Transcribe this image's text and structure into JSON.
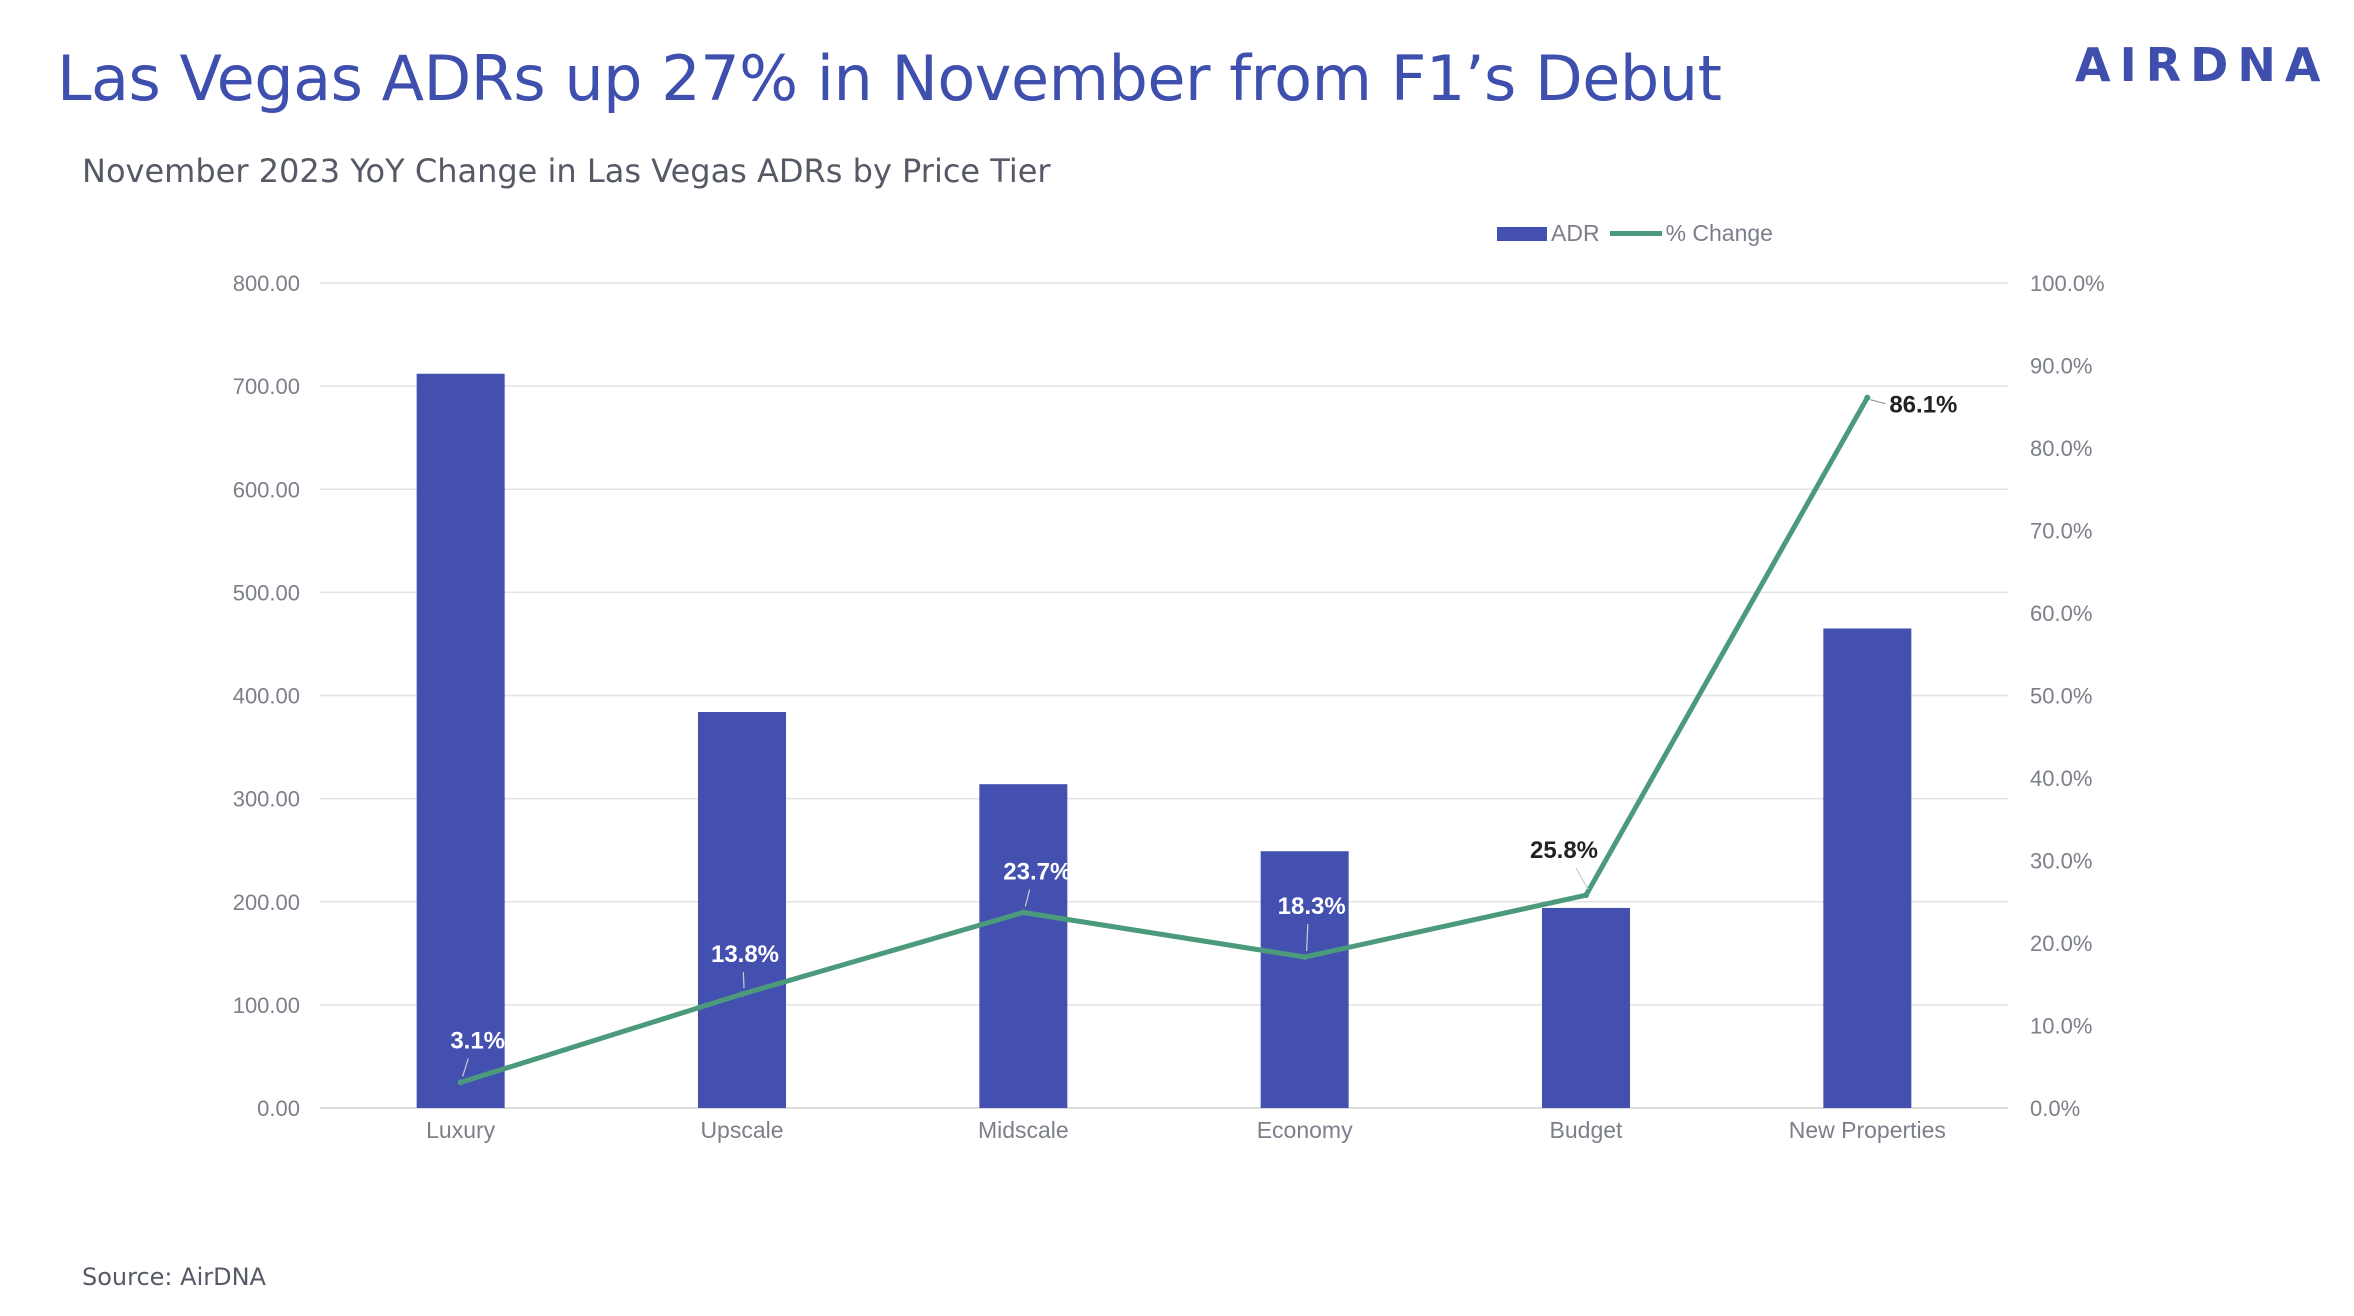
{
  "header": {
    "title": "Las Vegas ADRs up 27% in November from F1’s Debut",
    "subtitle": "November 2023 YoY Change in Las Vegas ADRs by Price Tier",
    "logo_text": "AIRDNA"
  },
  "footer": {
    "source": "Source: AirDNA"
  },
  "colors": {
    "bar": "#4350b0",
    "line": "#4c9a7c",
    "title": "#3f4fad",
    "grid": "#e3e3e3",
    "axis_text": "#7b7f89"
  },
  "chart_data": {
    "type": "bar",
    "title": "November 2023 YoY Change in Las Vegas ADRs by Price Tier",
    "categories": [
      "Luxury",
      "Upscale",
      "Midscale",
      "Economy",
      "Budget",
      "New Properties"
    ],
    "series": [
      {
        "name": "ADR",
        "type": "bar",
        "axis": "left",
        "values": [
          712,
          384,
          314,
          249,
          194,
          465
        ]
      },
      {
        "name": "% Change",
        "type": "line",
        "axis": "right",
        "values": [
          3.1,
          13.8,
          23.7,
          18.3,
          25.8,
          86.1
        ],
        "labels": [
          "3.1%",
          "13.8%",
          "23.7%",
          "18.3%",
          "25.8%",
          "86.1%"
        ]
      }
    ],
    "y_left": {
      "range": [
        0,
        800
      ],
      "ticks": [
        "0.00",
        "100.00",
        "200.00",
        "300.00",
        "400.00",
        "500.00",
        "600.00",
        "700.00",
        "800.00"
      ]
    },
    "y_right": {
      "range": [
        0,
        100
      ],
      "ticks": [
        "0.0%",
        "10.0%",
        "20.0%",
        "30.0%",
        "40.0%",
        "50.0%",
        "60.0%",
        "70.0%",
        "80.0%",
        "90.0%",
        "100.0%"
      ]
    },
    "grid": true,
    "legend": "top-right"
  }
}
